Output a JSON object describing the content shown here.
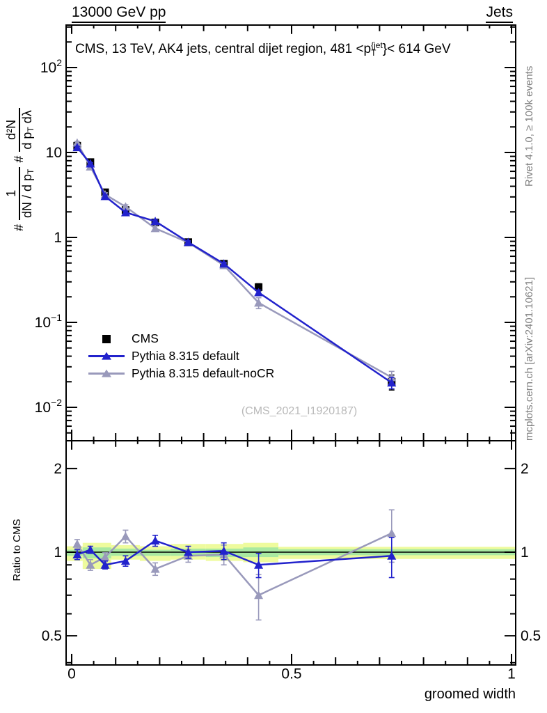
{
  "header": {
    "left": "13000 GeV pp",
    "right": "Jets"
  },
  "title": {
    "part1": "CMS, 13 TeV, AK4 jets, central dijet region, 481 <p",
    "sup": "{jet",
    "sub": "T",
    "part2": "}< 614 GeV"
  },
  "ylabel": {
    "hash1": "#",
    "num1": "1",
    "den1": "dN / d p",
    "den1_sub": "T",
    "hash2": "#",
    "num2": "d²N",
    "den2": "d p",
    "den2_sub": "T",
    "den2_tail": " dλ"
  },
  "ratio_ylabel": "Ratio to CMS",
  "xlabel": "groomed width",
  "watermark": "(CMS_2021_I1920187)",
  "credits": {
    "top": "Rivet 4.1.0, ≥ 100k events",
    "bottom": "mcplots.cern.ch [arXiv:2401.10621]"
  },
  "legend": [
    {
      "label": "CMS"
    },
    {
      "label": "Pythia 8.315 default"
    },
    {
      "label": "Pythia 8.315 default-noCR"
    }
  ],
  "colors": {
    "cms": "#000000",
    "pythia_default": "#2222cc",
    "pythia_nocr": "#9999bb",
    "band_yellow": "#eefb9d",
    "band_green": "#a9e9a1",
    "credits_gray": "#808080",
    "watermark_gray": "#b9b9b9"
  },
  "chart_data": {
    "type": "line",
    "title": "CMS, 13 TeV, AK4 jets, central dijet region, 481 <pT{jet}< 614 GeV",
    "xlabel": "groomed width",
    "ylabel": "# 1/(dN/dpT) # d2N/(dpT dlambda)",
    "xlim": [
      0,
      1
    ],
    "main_ylim": [
      0.004,
      320
    ],
    "ratio_ylim": [
      0.39,
      2.52
    ],
    "x": [
      0.0125,
      0.0425,
      0.076,
      0.1225,
      0.19,
      0.265,
      0.346,
      0.425,
      0.7275
    ],
    "series": [
      {
        "name": "CMS",
        "marker": "square",
        "y": [
          12.0,
          7.7,
          3.4,
          2.1,
          1.5,
          0.88,
          0.49,
          0.26,
          0.02
        ],
        "yerr": [
          0.6,
          0.35,
          0.18,
          0.1,
          0.08,
          0.04,
          0.03,
          0.025,
          0.004
        ]
      },
      {
        "name": "Pythia 8.315 default",
        "marker": "triangle",
        "y": [
          11.5,
          7.4,
          3.05,
          1.97,
          1.55,
          0.88,
          0.49,
          0.225,
          0.0195
        ],
        "yerr": [
          0.3,
          0.2,
          0.12,
          0.08,
          0.06,
          0.03,
          0.02,
          0.015,
          0.003
        ],
        "ratio": [
          0.98,
          1.02,
          0.9,
          0.93,
          1.1,
          1.0,
          1.01,
          0.9,
          0.97
        ],
        "ratio_err": [
          0.04,
          0.03,
          0.03,
          0.04,
          0.05,
          0.05,
          0.07,
          0.09,
          0.16
        ]
      },
      {
        "name": "Pythia 8.315 default-noCR",
        "marker": "triangle",
        "y": [
          13.0,
          6.8,
          3.2,
          2.3,
          1.28,
          0.87,
          0.47,
          0.17,
          0.0225
        ],
        "yerr": [
          0.5,
          0.3,
          0.15,
          0.12,
          0.08,
          0.04,
          0.03,
          0.025,
          0.004
        ],
        "ratio": [
          1.07,
          0.9,
          0.96,
          1.14,
          0.87,
          0.97,
          0.98,
          0.7,
          1.17
        ],
        "ratio_err": [
          0.04,
          0.04,
          0.035,
          0.06,
          0.045,
          0.05,
          0.08,
          0.13,
          0.25
        ]
      }
    ],
    "x_ticks_labeled": [
      {
        "v": 0,
        "label": "0"
      },
      {
        "v": 0.5,
        "label": "0.5"
      },
      {
        "v": 1,
        "label": "1"
      }
    ],
    "main_y_decades": [
      2,
      1,
      0,
      -1,
      -2
    ],
    "ratio_y_ticks": [
      {
        "v": 2,
        "label": "2"
      },
      {
        "v": 1,
        "label": "1"
      },
      {
        "v": 0.5,
        "label": "0.5"
      }
    ],
    "ratio_bands": [
      {
        "x0": 0.0,
        "x1": 0.025,
        "yellow": [
          0.93,
          1.05
        ],
        "green": [
          0.97,
          1.02
        ]
      },
      {
        "x0": 0.025,
        "x1": 0.09,
        "yellow": [
          0.87,
          1.08
        ],
        "green": [
          0.95,
          1.04
        ]
      },
      {
        "x0": 0.09,
        "x1": 0.155,
        "yellow": [
          0.94,
          1.06
        ],
        "green": [
          0.97,
          1.03
        ]
      },
      {
        "x0": 0.155,
        "x1": 0.225,
        "yellow": [
          0.93,
          1.05
        ],
        "green": [
          0.97,
          1.02
        ]
      },
      {
        "x0": 0.225,
        "x1": 0.305,
        "yellow": [
          0.94,
          1.07
        ],
        "green": [
          0.97,
          1.03
        ]
      },
      {
        "x0": 0.305,
        "x1": 0.39,
        "yellow": [
          0.93,
          1.07
        ],
        "green": [
          0.96,
          1.03
        ]
      },
      {
        "x0": 0.39,
        "x1": 0.47,
        "yellow": [
          0.92,
          1.08
        ],
        "green": [
          0.96,
          1.04
        ]
      },
      {
        "x0": 0.47,
        "x1": 1.0,
        "yellow": [
          0.945,
          1.045
        ],
        "green": [
          0.975,
          1.025
        ]
      }
    ],
    "legend_position": "middle-left",
    "grid": false
  }
}
